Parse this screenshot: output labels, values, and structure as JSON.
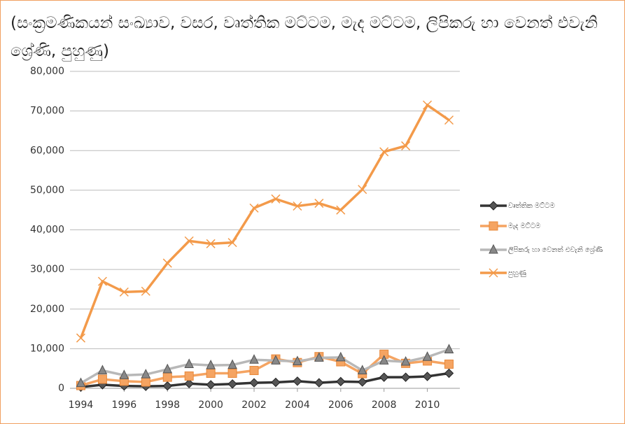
{
  "chart_data": {
    "type": "line",
    "title": "(සංක්‍රමණිකයන් සංඛ්‍යාව, වසර, වෘත්තික මට්ටම, මැද මට්ටම, ලිපිකරු හා වෙනත් එවැනි ශ්‍රේණි, පුහුණු)",
    "x": [
      1994,
      1995,
      1996,
      1997,
      1998,
      1999,
      2000,
      2001,
      2002,
      2003,
      2004,
      2005,
      2006,
      2007,
      2008,
      2009,
      2010,
      2011
    ],
    "xlim": [
      1993.5,
      2011.5
    ],
    "xticks": [
      1994,
      1996,
      1998,
      2000,
      2002,
      2004,
      2006,
      2008,
      2010
    ],
    "ylim": [
      0,
      80000
    ],
    "yticks": [
      0,
      {
        "value": 10000,
        "label": "10,000"
      },
      {
        "value": 20000,
        "label": "20,000"
      },
      {
        "value": 30000,
        "label": "30,000"
      },
      {
        "value": 40000,
        "label": "40,000"
      },
      {
        "value": 50000,
        "label": "50,000"
      },
      {
        "value": 60000,
        "label": "60,000"
      },
      {
        "value": 70000,
        "label": "70,000"
      },
      {
        "value": 80000,
        "label": "80,000"
      }
    ],
    "grid": true,
    "legend": "right",
    "series": [
      {
        "name": "වෘත්තික මට්ටම",
        "color": "#333333",
        "marker": "diamond",
        "values": [
          300,
          900,
          600,
          500,
          600,
          1200,
          900,
          1100,
          1400,
          1500,
          1800,
          1400,
          1700,
          1600,
          2800,
          2800,
          3000,
          3800
        ]
      },
      {
        "name": "මැද මට්ටම",
        "color": "#f5a462",
        "marker": "square",
        "values": [
          700,
          2300,
          1800,
          1600,
          2800,
          3100,
          3800,
          3800,
          4500,
          7400,
          6500,
          8000,
          6700,
          3700,
          8600,
          6300,
          6900,
          6100
        ]
      },
      {
        "name": "ලිපිකරු හා වෙනත් එවැනි ශ්‍රේණි",
        "color": "#b8b8b8",
        "marker": "triangle",
        "values": [
          1300,
          4500,
          3300,
          3500,
          4800,
          6100,
          5800,
          5900,
          7200,
          7000,
          6800,
          7700,
          7800,
          4500,
          7000,
          6700,
          7900,
          9800
        ]
      },
      {
        "name": "පුහුණු",
        "color": "#f39a4a",
        "marker": "x",
        "values": [
          12700,
          27000,
          24300,
          24500,
          31600,
          37200,
          36500,
          36800,
          45500,
          47800,
          46000,
          46700,
          45000,
          50200,
          59700,
          61200,
          71500,
          67700
        ]
      }
    ]
  }
}
